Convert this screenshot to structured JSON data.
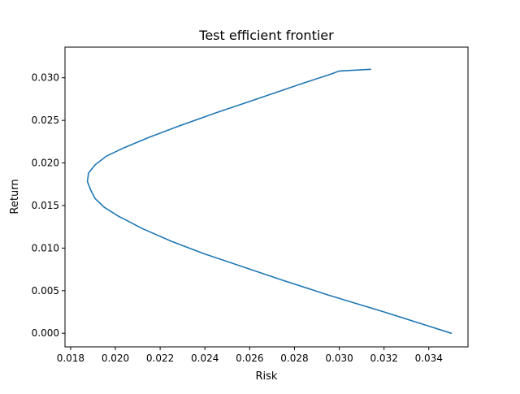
{
  "chart_data": {
    "type": "line",
    "title": "Test efficient frontier",
    "xlabel": "Risk",
    "ylabel": "Return",
    "xlim": [
      0.01775,
      0.03575
    ],
    "ylim": [
      -0.0016,
      0.0336
    ],
    "grid": false,
    "legend": "none",
    "xticks": [
      0.018,
      0.02,
      0.022,
      0.024,
      0.026,
      0.028,
      0.03,
      0.032,
      0.034
    ],
    "xtick_labels": [
      "0.018",
      "0.020",
      "0.022",
      "0.024",
      "0.026",
      "0.028",
      "0.030",
      "0.032",
      "0.034"
    ],
    "yticks": [
      0.0,
      0.005,
      0.01,
      0.015,
      0.02,
      0.025,
      0.03
    ],
    "ytick_labels": [
      "0.000",
      "0.005",
      "0.010",
      "0.015",
      "0.020",
      "0.025",
      "0.030"
    ],
    "series": [
      {
        "color": "#1f77b4",
        "x": [
          0.035,
          0.032,
          0.0295,
          0.0275,
          0.0257,
          0.024,
          0.0225,
          0.0212,
          0.0201,
          0.0195,
          0.0191,
          0.0189,
          0.01875,
          0.0188,
          0.0191,
          0.0196,
          0.0204,
          0.0215,
          0.0228,
          0.0244,
          0.0262,
          0.0282,
          0.0296,
          0.03,
          0.0314
        ],
        "y": [
          0.0,
          0.0025,
          0.0045,
          0.0062,
          0.0078,
          0.0093,
          0.0108,
          0.0123,
          0.0138,
          0.0148,
          0.0158,
          0.0168,
          0.0178,
          0.0188,
          0.0198,
          0.0208,
          0.0218,
          0.023,
          0.0243,
          0.0258,
          0.0274,
          0.0292,
          0.0304,
          0.0308,
          0.031
        ]
      }
    ]
  }
}
